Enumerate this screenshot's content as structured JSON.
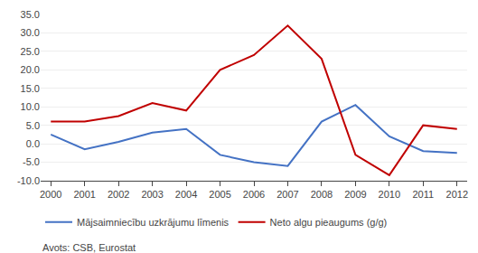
{
  "chart_data": {
    "type": "line",
    "x": [
      2000,
      2001,
      2002,
      2003,
      2004,
      2005,
      2006,
      2007,
      2008,
      2009,
      2010,
      2011,
      2012
    ],
    "series": [
      {
        "name": "Mājsaimniecību uzkrājumu līmenis",
        "color": "#4472C4",
        "values": [
          2.5,
          -1.5,
          0.5,
          3.0,
          4.0,
          -3.0,
          -5.0,
          -6.0,
          6.0,
          10.5,
          2.0,
          -2.0,
          -2.5
        ]
      },
      {
        "name": "Neto algu pieaugums (g/g)",
        "color": "#C00000",
        "values": [
          6.0,
          6.0,
          7.5,
          11.0,
          9.0,
          20.0,
          24.0,
          32.0,
          23.0,
          -3.0,
          -8.5,
          5.0,
          4.0
        ]
      }
    ],
    "xlim": [
      1999.7,
      2012.3
    ],
    "xticks": [
      2000,
      2001,
      2002,
      2003,
      2004,
      2005,
      2006,
      2007,
      2008,
      2009,
      2010,
      2011,
      2012
    ],
    "ylim": [
      -10.0,
      35.0
    ],
    "yticks": [
      {
        "value": -10.0,
        "label": "-10.0"
      },
      {
        "value": -5.0,
        "label": "-5.0"
      },
      {
        "value": 0.0,
        "label": "0.0"
      },
      {
        "value": 5.0,
        "label": "5.0"
      },
      {
        "value": 10.0,
        "label": "10.0"
      },
      {
        "value": 15.0,
        "label": "15.0"
      },
      {
        "value": 20.0,
        "label": "20.0"
      },
      {
        "value": 25.0,
        "label": "25.0"
      },
      {
        "value": 30.0,
        "label": "30.0"
      },
      {
        "value": 35.0,
        "label": "35.0"
      }
    ],
    "grid": true,
    "legend": "bottom",
    "annotations": [
      "Avots: CSB, Eurostat"
    ]
  }
}
